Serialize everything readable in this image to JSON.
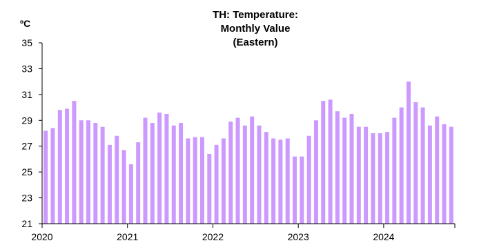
{
  "chart_data": {
    "type": "bar",
    "title": [
      "TH: Temperature:",
      "Monthly Value",
      "(Eastern)"
    ],
    "unit_label": "ºC",
    "xlabel": "",
    "ylabel": "ºC",
    "ylim": [
      21,
      35
    ],
    "yticks": [
      21,
      23,
      25,
      27,
      29,
      31,
      33,
      35
    ],
    "xtick_labels": [
      "2020",
      "2021",
      "2022",
      "2023",
      "2024"
    ],
    "grid": false,
    "bar_color": "#cc99ff",
    "start_month": "2020-01",
    "end_month": "2024-10",
    "series": [
      {
        "values": [
          28.2,
          28.4,
          29.8,
          29.9,
          30.5,
          29.0,
          29.0,
          28.8,
          28.5,
          27.1,
          27.8,
          26.7,
          25.6,
          27.3,
          29.2,
          28.8,
          29.6,
          29.5,
          28.6,
          28.8,
          27.6,
          27.7,
          27.7,
          26.4,
          27.1,
          27.6,
          28.9,
          29.2,
          28.6,
          29.3,
          28.6,
          28.1,
          27.6,
          27.5,
          27.6,
          26.2,
          26.2,
          27.8,
          29.0,
          30.5,
          30.6,
          29.7,
          29.2,
          29.5,
          28.5,
          28.5,
          28.0,
          28.0,
          28.1,
          29.2,
          30.0,
          32.0,
          30.4,
          30.0,
          28.6,
          29.3,
          28.7,
          28.5
        ]
      }
    ]
  }
}
